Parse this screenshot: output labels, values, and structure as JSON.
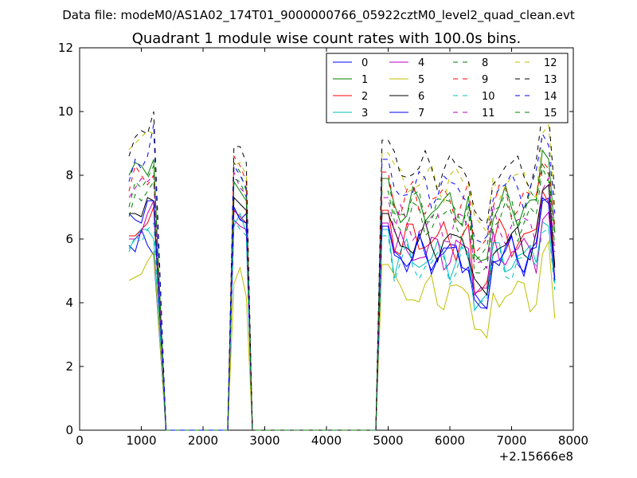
{
  "figure": {
    "suptitle": "Data file: modeM0/AS1A02_174T01_9000000766_05922cztM0_level2_quad_clean.evt"
  },
  "chart_data": {
    "type": "line",
    "title": "Quadrant 1 module wise count rates with 100.0s bins.",
    "xlabel": "",
    "ylabel": "",
    "xlim": [
      0,
      8000
    ],
    "ylim": [
      0,
      12
    ],
    "x_offset_label": "+2.15666e8",
    "xticks": [
      0,
      1000,
      2000,
      3000,
      4000,
      5000,
      6000,
      7000,
      8000
    ],
    "yticks": [
      0,
      2,
      4,
      6,
      8,
      10,
      12
    ],
    "legend_position": "top-right",
    "grid": false,
    "segments": [
      {
        "x_start": 800,
        "step": 100,
        "n": 5
      },
      {
        "x_start": 2500,
        "step": 100,
        "n": 3
      },
      {
        "x_start": 4900,
        "step": 100,
        "n": 29
      }
    ],
    "series": [
      {
        "name": "0",
        "color": "#0000ff",
        "dash": false,
        "base": [
          5.8,
          5.6,
          6.3,
          5.8,
          5.5
        ],
        "mid": [
          7.0,
          6.6,
          6.8
        ],
        "late_base": 5.5
      },
      {
        "name": "1",
        "color": "#008000",
        "dash": false,
        "base": [
          8.0,
          8.4,
          8.3,
          8.0,
          8.5
        ],
        "mid": [
          7.8,
          7.5,
          7.2
        ],
        "late_base": 7.0
      },
      {
        "name": "2",
        "color": "#ff0000",
        "dash": false,
        "base": [
          6.1,
          6.1,
          6.3,
          6.5,
          7.0
        ],
        "mid": [
          6.9,
          6.7,
          6.5
        ],
        "late_base": 6.0
      },
      {
        "name": "3",
        "color": "#00bfbf",
        "dash": false,
        "base": [
          5.7,
          6.0,
          6.3,
          6.3,
          6.0
        ],
        "mid": [
          6.4,
          6.8,
          6.2
        ],
        "late_base": 5.4
      },
      {
        "name": "4",
        "color": "#bf00bf",
        "dash": false,
        "base": [
          6.0,
          6.0,
          6.2,
          6.8,
          7.2
        ],
        "mid": [
          6.6,
          6.4,
          6.3
        ],
        "late_base": 5.6
      },
      {
        "name": "5",
        "color": "#bfbf00",
        "dash": false,
        "base": [
          4.7,
          4.8,
          4.9,
          5.3,
          5.6
        ],
        "mid": [
          4.6,
          5.1,
          4.2
        ],
        "late_base": 4.3
      },
      {
        "name": "6",
        "color": "#000000",
        "dash": false,
        "base": [
          6.8,
          6.8,
          6.7,
          7.3,
          7.2
        ],
        "mid": [
          7.3,
          7.1,
          6.9
        ],
        "late_base": 5.9
      },
      {
        "name": "7",
        "color": "#0000ff",
        "dash": false,
        "base": [
          6.8,
          6.6,
          6.5,
          7.2,
          7.2
        ],
        "mid": [
          7.0,
          6.6,
          6.5
        ],
        "late_base": 5.5
      },
      {
        "name": "8",
        "color": "#008000",
        "dash": true,
        "base": [
          6.7,
          7.4,
          7.2,
          7.5,
          7.8
        ],
        "mid": [
          8.4,
          8.1,
          7.5
        ],
        "late_base": 6.6
      },
      {
        "name": "9",
        "color": "#ff0000",
        "dash": true,
        "base": [
          7.5,
          8.3,
          8.0,
          7.7,
          8.0
        ],
        "mid": [
          8.6,
          8.3,
          7.8
        ],
        "late_base": 7.2
      },
      {
        "name": "10",
        "color": "#00bfbf",
        "dash": true,
        "base": [
          5.6,
          6.1,
          5.9,
          6.3,
          6.5
        ],
        "mid": [
          6.6,
          6.3,
          6.1
        ],
        "late_base": 5.2
      },
      {
        "name": "11",
        "color": "#bf00bf",
        "dash": true,
        "base": [
          7.3,
          7.6,
          7.9,
          7.8,
          8.0
        ],
        "mid": [
          8.1,
          7.6,
          7.4
        ],
        "late_base": 6.4
      },
      {
        "name": "12",
        "color": "#bfbf00",
        "dash": true,
        "base": [
          8.8,
          9.0,
          9.2,
          9.4,
          9.3
        ],
        "mid": [
          8.3,
          8.4,
          8.0
        ],
        "late_base": 7.8
      },
      {
        "name": "13",
        "color": "#000000",
        "dash": true,
        "base": [
          8.6,
          9.2,
          9.4,
          9.3,
          10.0
        ],
        "mid": [
          8.9,
          8.9,
          8.4
        ],
        "late_base": 8.2
      },
      {
        "name": "14",
        "color": "#0000ff",
        "dash": true,
        "base": [
          7.8,
          8.5,
          8.2,
          8.6,
          9.6
        ],
        "mid": [
          8.3,
          8.0,
          7.6
        ],
        "late_base": 7.6
      },
      {
        "name": "15",
        "color": "#008000",
        "dash": true,
        "base": [
          7.0,
          7.8,
          7.6,
          7.9,
          8.3
        ],
        "mid": [
          7.9,
          7.8,
          7.3
        ],
        "late_base": 7.0
      }
    ]
  }
}
